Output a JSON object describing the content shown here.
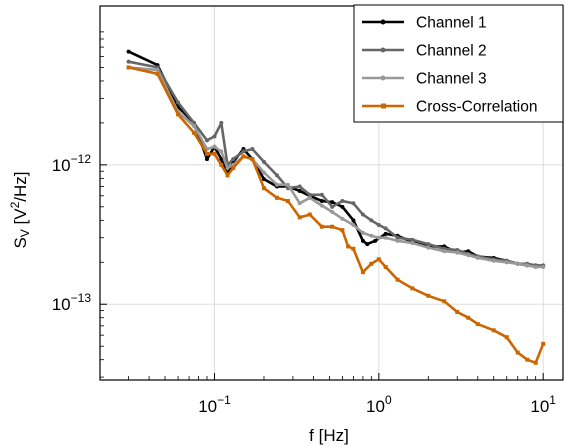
{
  "chart_data": {
    "type": "line",
    "title": "",
    "xlabel": "f [Hz]",
    "ylabel": "S_V [V²/Hz]",
    "xscale": "log",
    "yscale": "log",
    "xlim": [
      0.0201,
      13.2
    ],
    "ylim": [
      2.86e-14,
      1.38e-11
    ],
    "grid": true,
    "legend_position": "top-right",
    "x_ticks": [
      {
        "value": 0.1,
        "base": "10",
        "exp": "−1"
      },
      {
        "value": 1,
        "base": "10",
        "exp": "0"
      },
      {
        "value": 10,
        "base": "10",
        "exp": "1"
      }
    ],
    "y_ticks": [
      {
        "value": 1e-13,
        "base": "10",
        "exp": "−13"
      },
      {
        "value": 1e-12,
        "base": "10",
        "exp": "−12"
      }
    ],
    "series": [
      {
        "name": "Channel 1",
        "color": "#000000",
        "marker": "dot",
        "x": [
          0.03,
          0.045,
          0.06,
          0.075,
          0.09,
          0.1,
          0.11,
          0.12,
          0.13,
          0.15,
          0.17,
          0.2,
          0.24,
          0.28,
          0.33,
          0.38,
          0.45,
          0.52,
          0.6,
          0.7,
          0.8,
          0.85,
          0.95,
          1.1,
          1.3,
          1.6,
          2,
          2.5,
          3,
          3.5,
          4,
          5,
          6,
          7,
          8,
          9,
          10
        ],
        "y": [
          6.5e-12,
          5.2e-12,
          2.6e-12,
          2e-12,
          1.1e-12,
          1.35e-12,
          1.1e-12,
          8.6e-13,
          1.05e-12,
          1.3e-12,
          1.1e-12,
          7.9e-13,
          7e-13,
          7e-13,
          6.5e-13,
          6e-13,
          5.5e-13,
          5.4e-13,
          5e-13,
          4e-13,
          2.85e-13,
          2.7e-13,
          2.85e-13,
          3.2e-13,
          3.1e-13,
          2.8e-13,
          2.6e-13,
          2.6e-13,
          2.35e-13,
          2.4e-13,
          2.2e-13,
          2.15e-13,
          2.05e-13,
          1.95e-13,
          1.9e-13,
          1.9e-13,
          1.88e-13
        ]
      },
      {
        "name": "Channel 2",
        "color": "#666666",
        "marker": "dot",
        "x": [
          0.03,
          0.045,
          0.06,
          0.075,
          0.09,
          0.1,
          0.11,
          0.12,
          0.13,
          0.15,
          0.17,
          0.2,
          0.24,
          0.28,
          0.33,
          0.38,
          0.45,
          0.52,
          0.6,
          0.7,
          0.8,
          0.9,
          1.0,
          1.1,
          1.3,
          1.6,
          2,
          2.5,
          3,
          3.5,
          4,
          5,
          6,
          7,
          8,
          9,
          10
        ],
        "y": [
          5.5e-12,
          5e-12,
          2.8e-12,
          2e-12,
          1.5e-12,
          1.6e-12,
          2e-12,
          1e-12,
          1.1e-12,
          1.25e-12,
          1.3e-12,
          1.05e-12,
          8.4e-13,
          6.8e-13,
          7e-13,
          6.1e-13,
          6.1e-13,
          5e-13,
          5.5e-13,
          5.3e-13,
          4.4e-13,
          4e-13,
          3.7e-13,
          3.5e-13,
          3e-13,
          2.9e-13,
          2.7e-13,
          2.5e-13,
          2.45e-13,
          2.3e-13,
          2.2e-13,
          2.1e-13,
          2.05e-13,
          1.95e-13,
          1.95e-13,
          1.9e-13,
          1.9e-13
        ]
      },
      {
        "name": "Channel 3",
        "color": "#999999",
        "marker": "dot",
        "x": [
          0.03,
          0.045,
          0.06,
          0.075,
          0.09,
          0.1,
          0.11,
          0.12,
          0.13,
          0.15,
          0.17,
          0.2,
          0.24,
          0.28,
          0.33,
          0.38,
          0.45,
          0.52,
          0.6,
          0.7,
          0.8,
          0.9,
          1.0,
          1.1,
          1.3,
          1.6,
          2,
          2.5,
          3,
          3.5,
          4,
          5,
          6,
          7,
          8,
          9,
          10
        ],
        "y": [
          5e-12,
          4.8e-12,
          2.4e-12,
          1.9e-12,
          1.3e-12,
          1.35e-12,
          1.25e-12,
          9.5e-13,
          1e-12,
          1.15e-12,
          1.1e-12,
          8.8e-13,
          7.2e-13,
          7.2e-13,
          5.3e-13,
          5.8e-13,
          5.1e-13,
          4.6e-13,
          4.1e-13,
          3.7e-13,
          3.25e-13,
          3.1e-13,
          3e-13,
          3e-13,
          2.85e-13,
          2.75e-13,
          2.55e-13,
          2.4e-13,
          2.35e-13,
          2.25e-13,
          2.15e-13,
          2.05e-13,
          2e-13,
          1.95e-13,
          1.9e-13,
          1.85e-13,
          1.85e-13
        ]
      },
      {
        "name": "Cross-Correlation",
        "color": "#cc6600",
        "marker": "square",
        "x": [
          0.03,
          0.045,
          0.06,
          0.075,
          0.09,
          0.1,
          0.11,
          0.12,
          0.13,
          0.15,
          0.17,
          0.2,
          0.24,
          0.28,
          0.33,
          0.38,
          0.45,
          0.52,
          0.6,
          0.65,
          0.7,
          0.8,
          0.9,
          1.0,
          1.1,
          1.3,
          1.6,
          2,
          2.5,
          3,
          3.5,
          4,
          5,
          6,
          7,
          8,
          9,
          10
        ],
        "y": [
          5e-12,
          4.5e-12,
          2.3e-12,
          1.7e-12,
          1.2e-12,
          1.2e-12,
          1e-12,
          8.4e-13,
          9.5e-13,
          1.15e-12,
          1.1e-12,
          6.8e-13,
          5.8e-13,
          5.5e-13,
          4.2e-13,
          4.4e-13,
          3.6e-13,
          3.6e-13,
          3.4e-13,
          2.6e-13,
          2.5e-13,
          1.7e-13,
          1.95e-13,
          2.1e-13,
          1.85e-13,
          1.5e-13,
          1.3e-13,
          1.15e-13,
          1.05e-13,
          8.8e-14,
          8e-14,
          7.2e-14,
          6.5e-14,
          5.8e-14,
          4.5e-14,
          4e-14,
          3.8e-14,
          5.2e-14
        ]
      }
    ]
  }
}
